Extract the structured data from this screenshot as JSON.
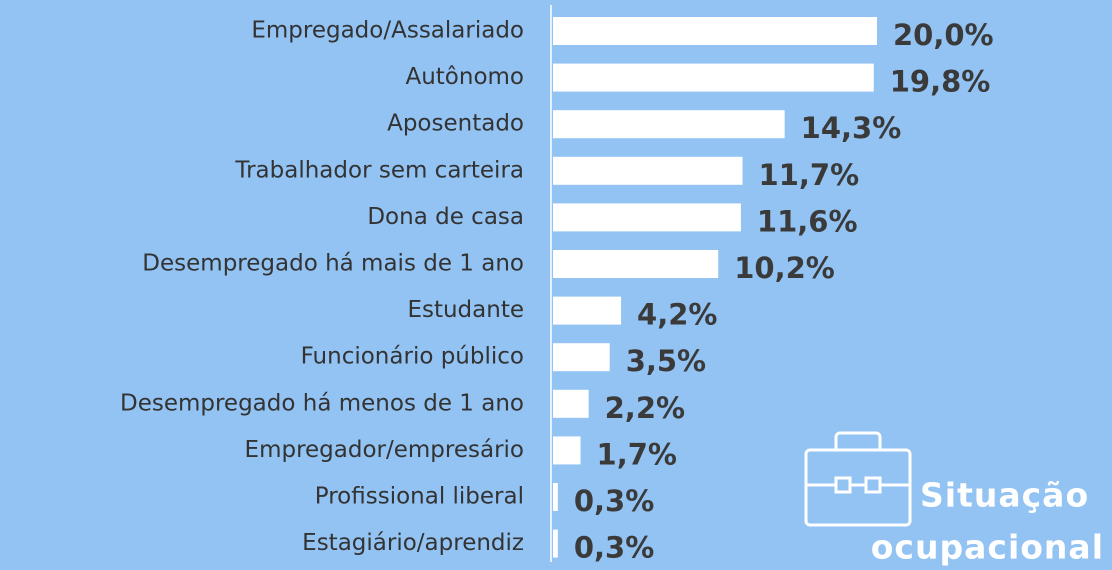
{
  "chart_data": {
    "type": "bar",
    "orientation": "horizontal",
    "title": [
      "Situação",
      "ocupacional"
    ],
    "categories": [
      "Empregado/Assalariado",
      "Autônomo",
      "Aposentado",
      "Trabalhador sem carteira",
      "Dona de casa",
      "Desempregado há mais de 1 ano",
      "Estudante",
      "Funcionário público",
      "Desempregado há menos de 1 ano",
      "Empregador/empresário",
      "Profissional liberal",
      "Estagiário/aprendiz"
    ],
    "values": [
      20.0,
      19.8,
      14.3,
      11.7,
      11.6,
      10.2,
      4.2,
      3.5,
      2.2,
      1.7,
      0.3,
      0.3
    ],
    "value_labels": [
      "20,0%",
      "19,8%",
      "14,3%",
      "11,7%",
      "11,6%",
      "10,2%",
      "4,2%",
      "3,5%",
      "2,2%",
      "1,7%",
      "0,3%",
      "0,3%"
    ],
    "color": "#ffffff"
  }
}
